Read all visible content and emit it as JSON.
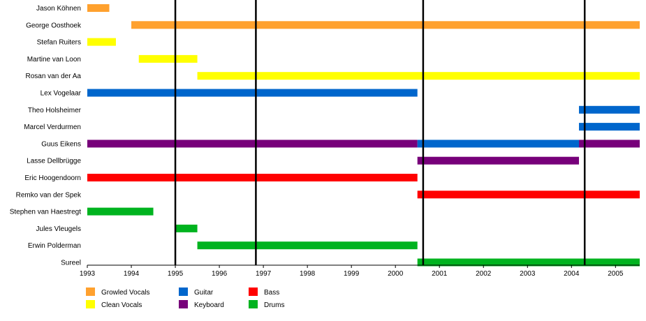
{
  "chart_data": {
    "type": "timeline",
    "x_axis": {
      "range": [
        1993.0,
        2005.55
      ],
      "ticks": [
        "1993",
        "1994",
        "1995",
        "1996",
        "1997",
        "1998",
        "1999",
        "2000",
        "2001",
        "2002",
        "2003",
        "2004",
        "2005"
      ]
    },
    "members": [
      "Jason Köhnen",
      "George Oosthoek",
      "Stefan Ruiters",
      "Martine van Loon",
      "Rosan van der Aa",
      "Lex Vogelaar",
      "Theo Holsheimer",
      "Marcel Verdurmen",
      "Guus Eikens",
      "Lasse Dellbrügge",
      "Eric Hoogendoorn",
      "Remko van der Spek",
      "Stephen van Haestregt",
      "Jules Vleugels",
      "Erwin Polderman",
      "Sureel"
    ],
    "roles": {
      "growled_vocals": {
        "label": "Growled Vocals",
        "color": "#ffa12e"
      },
      "clean_vocals": {
        "label": "Clean Vocals",
        "color": "#ffff00"
      },
      "guitar": {
        "label": "Guitar",
        "color": "#0066cc"
      },
      "keyboard": {
        "label": "Keyboard",
        "color": "#77007a"
      },
      "bass": {
        "label": "Bass",
        "color": "#ff0000"
      },
      "drums": {
        "label": "Drums",
        "color": "#00b31f"
      }
    },
    "legend": [
      [
        "growled_vocals",
        "clean_vocals"
      ],
      [
        "guitar",
        "keyboard"
      ],
      [
        "bass",
        "drums"
      ]
    ],
    "bars": [
      {
        "member": 0,
        "role": "growled_vocals",
        "start": 1993.0,
        "end": 1993.5
      },
      {
        "member": 1,
        "role": "growled_vocals",
        "start": 1994.0,
        "end": 2005.55
      },
      {
        "member": 2,
        "role": "clean_vocals",
        "start": 1993.0,
        "end": 1993.65
      },
      {
        "member": 3,
        "role": "clean_vocals",
        "start": 1994.17,
        "end": 1995.5
      },
      {
        "member": 4,
        "role": "clean_vocals",
        "start": 1995.5,
        "end": 2005.55
      },
      {
        "member": 5,
        "role": "guitar",
        "start": 1993.0,
        "end": 2000.5
      },
      {
        "member": 6,
        "role": "guitar",
        "start": 2004.17,
        "end": 2005.55
      },
      {
        "member": 7,
        "role": "guitar",
        "start": 2004.17,
        "end": 2005.55
      },
      {
        "member": 8,
        "role": "keyboard",
        "start": 1993.0,
        "end": 2000.5
      },
      {
        "member": 8,
        "role": "guitar",
        "start": 2000.5,
        "end": 2004.17
      },
      {
        "member": 8,
        "role": "keyboard",
        "start": 2004.17,
        "end": 2005.55
      },
      {
        "member": 9,
        "role": "keyboard",
        "start": 2000.5,
        "end": 2004.17
      },
      {
        "member": 10,
        "role": "bass",
        "start": 1993.0,
        "end": 2000.5
      },
      {
        "member": 11,
        "role": "bass",
        "start": 2000.5,
        "end": 2005.55
      },
      {
        "member": 12,
        "role": "drums",
        "start": 1993.0,
        "end": 1994.5
      },
      {
        "member": 13,
        "role": "drums",
        "start": 1995.0,
        "end": 1995.5
      },
      {
        "member": 14,
        "role": "drums",
        "start": 1995.5,
        "end": 2000.5
      },
      {
        "member": 15,
        "role": "drums",
        "start": 2000.5,
        "end": 2005.55
      }
    ],
    "release_lines": [
      1995.0,
      1996.83,
      2000.63,
      2004.3
    ]
  }
}
